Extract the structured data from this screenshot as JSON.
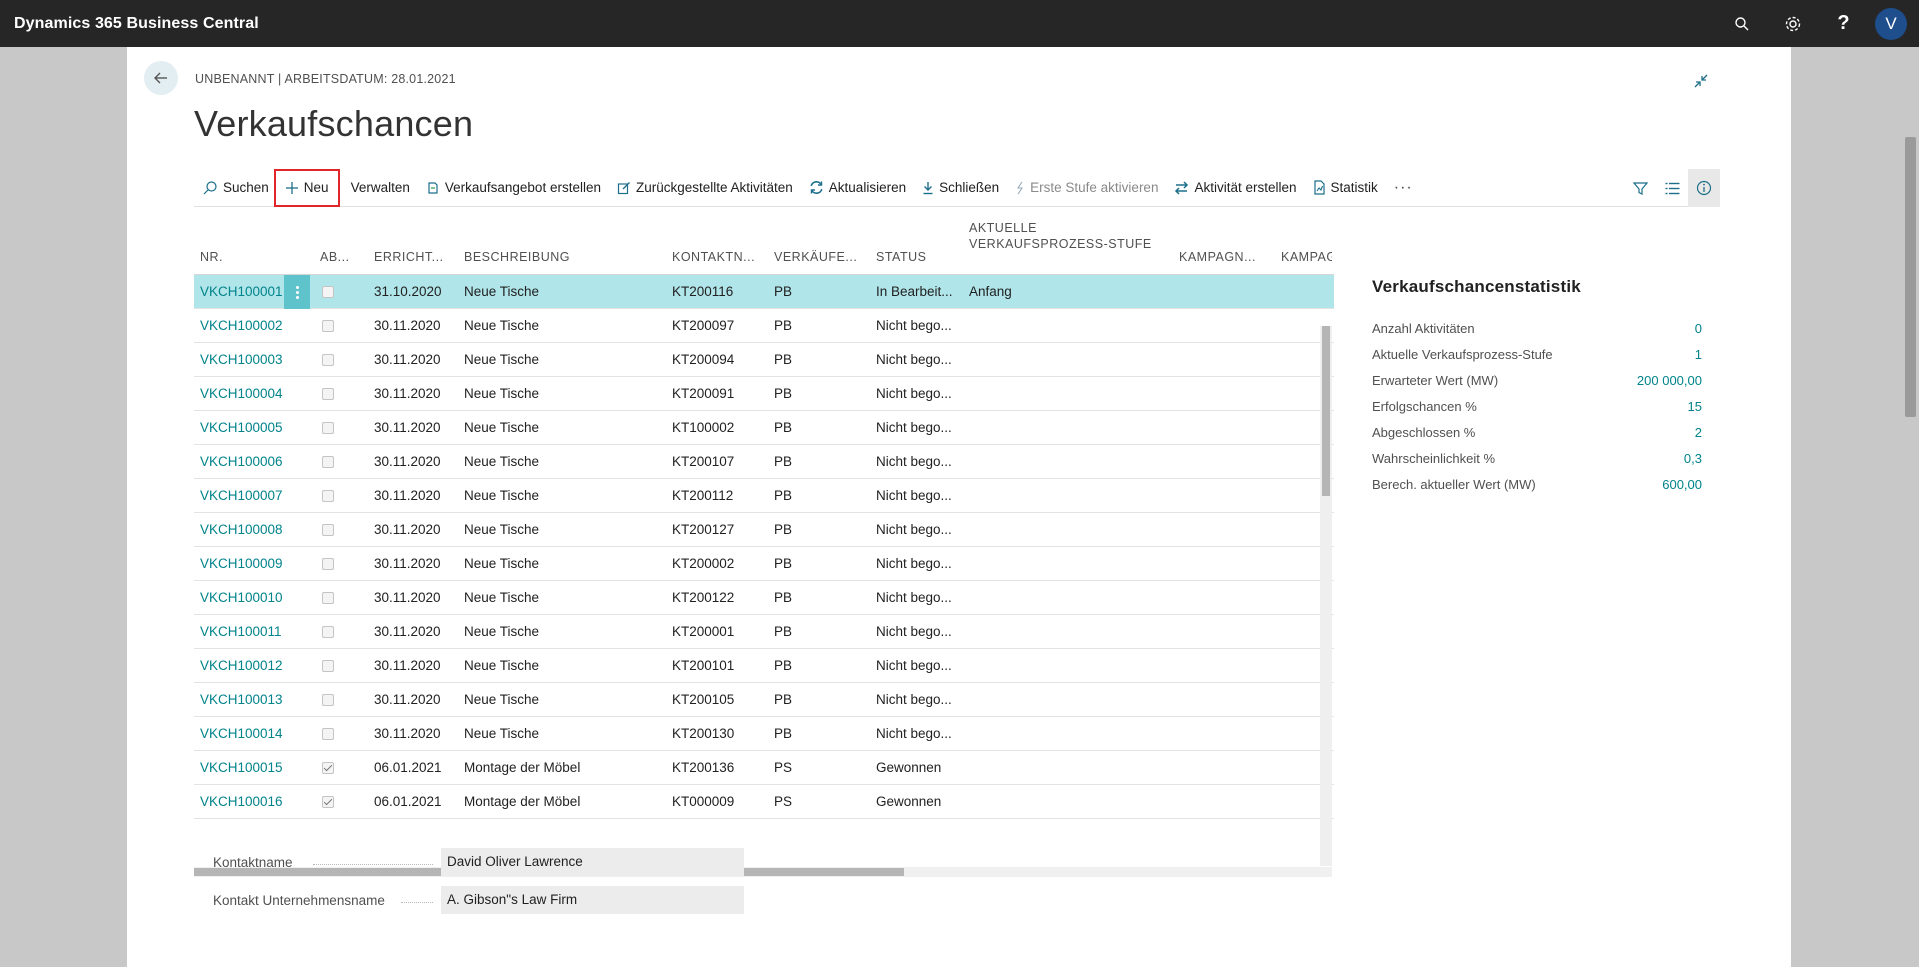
{
  "app": {
    "title": "Dynamics 365 Business Central",
    "avatar_letter": "V",
    "help_glyph": "?"
  },
  "page": {
    "caption": "UNBENANNT | ARBEITSDATUM: 28.01.2021",
    "title": "Verkaufschancen"
  },
  "actions": [
    {
      "label": "Suchen",
      "icon": "search-icon"
    },
    {
      "label": "Neu",
      "icon": "plus-icon"
    },
    {
      "label": "Verwalten",
      "icon": ""
    },
    {
      "label": "Verkaufsangebot erstellen",
      "icon": "quote-icon"
    },
    {
      "label": "Zurückgestellte Aktivitäten",
      "icon": "edit-icon"
    },
    {
      "label": "Aktualisieren",
      "icon": "refresh-icon"
    },
    {
      "label": "Schließen",
      "icon": "download-icon"
    },
    {
      "label": "Erste Stufe aktivieren",
      "icon": "flash-icon"
    },
    {
      "label": "Aktivität erstellen",
      "icon": "swap-icon"
    },
    {
      "label": "Statistik",
      "icon": "document-chart-icon"
    }
  ],
  "more_glyph": "···",
  "table": {
    "columns": [
      "NR.",
      "AB...",
      "ERRICHT...",
      "BESCHREIBUNG",
      "KONTAKTN...",
      "VERKÄUFE...",
      "STATUS",
      "AKTUELLE VERKAUFSPROZESS-STUFE",
      "KAMPAGN...",
      "KAMPAG"
    ],
    "column_line1": "AKTUELLE",
    "column_line2": "VERKAUFSPROZESS-STUFE",
    "rows": [
      {
        "nr": "VKCH100001",
        "closed": false,
        "date": "31.10.2020",
        "desc": "Neue Tische",
        "contact": "KT200116",
        "sp": "PB",
        "status": "In Bearbeit...",
        "stage": "Anfang"
      },
      {
        "nr": "VKCH100002",
        "closed": false,
        "date": "30.11.2020",
        "desc": "Neue Tische",
        "contact": "KT200097",
        "sp": "PB",
        "status": "Nicht bego...",
        "stage": ""
      },
      {
        "nr": "VKCH100003",
        "closed": false,
        "date": "30.11.2020",
        "desc": "Neue Tische",
        "contact": "KT200094",
        "sp": "PB",
        "status": "Nicht bego...",
        "stage": ""
      },
      {
        "nr": "VKCH100004",
        "closed": false,
        "date": "30.11.2020",
        "desc": "Neue Tische",
        "contact": "KT200091",
        "sp": "PB",
        "status": "Nicht bego...",
        "stage": ""
      },
      {
        "nr": "VKCH100005",
        "closed": false,
        "date": "30.11.2020",
        "desc": "Neue Tische",
        "contact": "KT100002",
        "sp": "PB",
        "status": "Nicht bego...",
        "stage": ""
      },
      {
        "nr": "VKCH100006",
        "closed": false,
        "date": "30.11.2020",
        "desc": "Neue Tische",
        "contact": "KT200107",
        "sp": "PB",
        "status": "Nicht bego...",
        "stage": ""
      },
      {
        "nr": "VKCH100007",
        "closed": false,
        "date": "30.11.2020",
        "desc": "Neue Tische",
        "contact": "KT200112",
        "sp": "PB",
        "status": "Nicht bego...",
        "stage": ""
      },
      {
        "nr": "VKCH100008",
        "closed": false,
        "date": "30.11.2020",
        "desc": "Neue Tische",
        "contact": "KT200127",
        "sp": "PB",
        "status": "Nicht bego...",
        "stage": ""
      },
      {
        "nr": "VKCH100009",
        "closed": false,
        "date": "30.11.2020",
        "desc": "Neue Tische",
        "contact": "KT200002",
        "sp": "PB",
        "status": "Nicht bego...",
        "stage": ""
      },
      {
        "nr": "VKCH100010",
        "closed": false,
        "date": "30.11.2020",
        "desc": "Neue Tische",
        "contact": "KT200122",
        "sp": "PB",
        "status": "Nicht bego...",
        "stage": ""
      },
      {
        "nr": "VKCH100011",
        "closed": false,
        "date": "30.11.2020",
        "desc": "Neue Tische",
        "contact": "KT200001",
        "sp": "PB",
        "status": "Nicht bego...",
        "stage": ""
      },
      {
        "nr": "VKCH100012",
        "closed": false,
        "date": "30.11.2020",
        "desc": "Neue Tische",
        "contact": "KT200101",
        "sp": "PB",
        "status": "Nicht bego...",
        "stage": ""
      },
      {
        "nr": "VKCH100013",
        "closed": false,
        "date": "30.11.2020",
        "desc": "Neue Tische",
        "contact": "KT200105",
        "sp": "PB",
        "status": "Nicht bego...",
        "stage": ""
      },
      {
        "nr": "VKCH100014",
        "closed": false,
        "date": "30.11.2020",
        "desc": "Neue Tische",
        "contact": "KT200130",
        "sp": "PB",
        "status": "Nicht bego...",
        "stage": ""
      },
      {
        "nr": "VKCH100015",
        "closed": true,
        "date": "06.01.2021",
        "desc": "Montage der Möbel",
        "contact": "KT200136",
        "sp": "PS",
        "status": "Gewonnen",
        "stage": ""
      },
      {
        "nr": "VKCH100016",
        "closed": true,
        "date": "06.01.2021",
        "desc": "Montage der Möbel",
        "contact": "KT000009",
        "sp": "PS",
        "status": "Gewonnen",
        "stage": ""
      }
    ]
  },
  "fields": {
    "contact_name_label": "Kontaktname",
    "contact_name_value": "David Oliver Lawrence",
    "company_name_label": "Kontakt Unternehmensname",
    "company_name_value": "A. Gibson\"s Law Firm"
  },
  "factbox": {
    "title": "Verkaufschancenstatistik",
    "rows": [
      {
        "label": "Anzahl Aktivitäten",
        "value": "0"
      },
      {
        "label": "Aktuelle Verkaufsprozess-Stufe",
        "value": "1"
      },
      {
        "label": "Erwarteter Wert (MW)",
        "value": "200 000,00"
      },
      {
        "label": "Erfolgschancen %",
        "value": "15"
      },
      {
        "label": "Abgeschlossen %",
        "value": "2"
      },
      {
        "label": "Wahrscheinlichkeit %",
        "value": "0,3"
      },
      {
        "label": "Berech. aktueller Wert (MW)",
        "value": "600,00"
      }
    ]
  },
  "colors": {
    "accent": "#00838a",
    "selected_row": "#b0e5e9",
    "appbar": "#262626",
    "highlight": "#e0252d"
  }
}
